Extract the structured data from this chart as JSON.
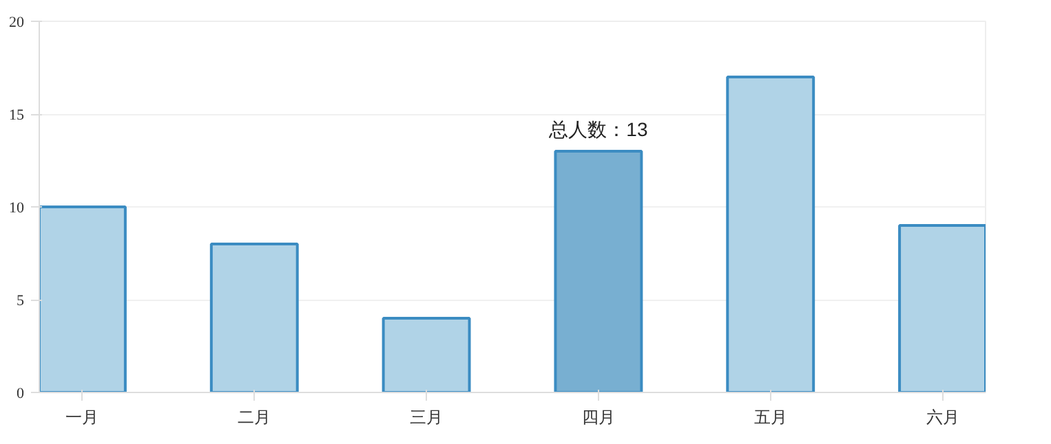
{
  "chart_data": {
    "type": "bar",
    "categories": [
      "一月",
      "二月",
      "三月",
      "四月",
      "五月",
      "六月"
    ],
    "values": [
      10,
      8,
      4,
      13,
      17,
      9
    ],
    "colors": [
      "#b0d3e7",
      "#b0d3e7",
      "#b0d3e7",
      "#78afd1",
      "#b0d3e7",
      "#b0d3e7"
    ],
    "ylim": [
      0,
      20
    ],
    "yticks": [
      0,
      5,
      10,
      15,
      20
    ],
    "grid": "y",
    "annotations": [
      {
        "text": "总人数：13",
        "x": "四月",
        "y": 13
      }
    ]
  }
}
